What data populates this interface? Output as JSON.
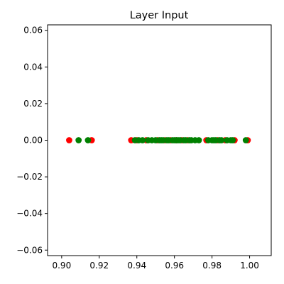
{
  "chart_data": {
    "type": "scatter",
    "title": "Layer Input",
    "xlabel": "",
    "ylabel": "",
    "xlim": [
      0.8925,
      1.0115
    ],
    "ylim": [
      -0.063,
      0.063
    ],
    "grid": false,
    "legend": null,
    "x_ticks": [
      {
        "value": 0.9,
        "label": "0.90"
      },
      {
        "value": 0.92,
        "label": "0.92"
      },
      {
        "value": 0.94,
        "label": "0.94"
      },
      {
        "value": 0.96,
        "label": "0.96"
      },
      {
        "value": 0.98,
        "label": "0.98"
      },
      {
        "value": 1.0,
        "label": "1.00"
      }
    ],
    "y_ticks": [
      {
        "value": 0.06,
        "label": "0.06"
      },
      {
        "value": 0.04,
        "label": "0.04"
      },
      {
        "value": 0.02,
        "label": "0.02"
      },
      {
        "value": 0.0,
        "label": "0.00"
      },
      {
        "value": -0.02,
        "label": "−0.02"
      },
      {
        "value": -0.04,
        "label": "−0.04"
      },
      {
        "value": -0.06,
        "label": "−0.06"
      }
    ],
    "series": [
      {
        "color": "#ff0000",
        "x": [
          0.904,
          0.916,
          0.937,
          0.94,
          0.945,
          0.951,
          0.955,
          0.958,
          0.961,
          0.964,
          0.967,
          0.977,
          0.983,
          0.987,
          0.992,
          0.999
        ],
        "y": [
          0,
          0,
          0,
          0,
          0,
          0,
          0,
          0,
          0,
          0,
          0,
          0,
          0,
          0,
          0,
          0
        ]
      },
      {
        "color": "#008000",
        "x": [
          0.909,
          0.914,
          0.939,
          0.941,
          0.943,
          0.946,
          0.948,
          0.95,
          0.952,
          0.953,
          0.954,
          0.956,
          0.957,
          0.959,
          0.96,
          0.961,
          0.962,
          0.963,
          0.965,
          0.966,
          0.968,
          0.969,
          0.971,
          0.973,
          0.978,
          0.98,
          0.981,
          0.982,
          0.984,
          0.985,
          0.988,
          0.99,
          0.991,
          0.998
        ],
        "y": [
          0,
          0,
          0,
          0,
          0,
          0,
          0,
          0,
          0,
          0,
          0,
          0,
          0,
          0,
          0,
          0,
          0,
          0,
          0,
          0,
          0,
          0,
          0,
          0,
          0,
          0,
          0,
          0,
          0,
          0,
          0,
          0,
          0,
          0
        ]
      }
    ]
  }
}
